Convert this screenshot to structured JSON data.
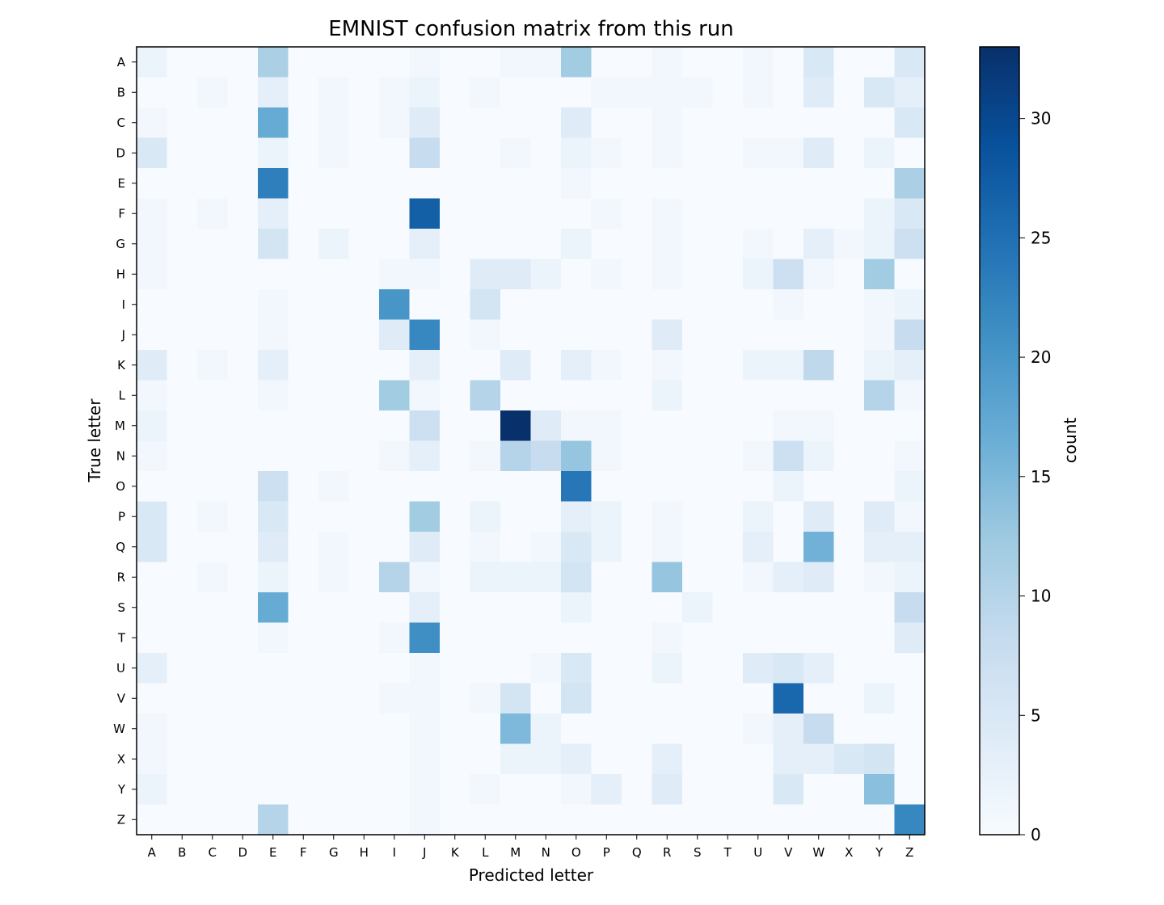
{
  "chart_data": {
    "type": "heatmap",
    "title": "EMNIST confusion matrix from this run",
    "xlabel": "Predicted letter",
    "ylabel": "True letter",
    "x_categories": [
      "A",
      "B",
      "C",
      "D",
      "E",
      "F",
      "G",
      "H",
      "I",
      "J",
      "K",
      "L",
      "M",
      "N",
      "O",
      "P",
      "Q",
      "R",
      "S",
      "T",
      "U",
      "V",
      "W",
      "X",
      "Y",
      "Z"
    ],
    "y_categories": [
      "A",
      "B",
      "C",
      "D",
      "E",
      "F",
      "G",
      "H",
      "I",
      "J",
      "K",
      "L",
      "M",
      "N",
      "O",
      "P",
      "Q",
      "R",
      "S",
      "T",
      "U",
      "V",
      "W",
      "X",
      "Y",
      "Z"
    ],
    "values": [
      [
        2,
        0,
        0,
        0,
        11,
        0,
        0,
        0,
        0,
        1,
        0,
        0,
        1,
        1,
        12,
        0,
        0,
        1,
        0,
        0,
        1,
        0,
        5,
        0,
        0,
        5
      ],
      [
        0,
        0,
        1,
        0,
        3,
        0,
        1,
        0,
        1,
        2,
        0,
        1,
        0,
        0,
        0,
        1,
        1,
        1,
        1,
        0,
        1,
        0,
        4,
        0,
        5,
        3
      ],
      [
        1,
        0,
        0,
        0,
        17,
        0,
        1,
        0,
        1,
        4,
        0,
        0,
        0,
        0,
        4,
        0,
        0,
        1,
        0,
        0,
        0,
        0,
        0,
        0,
        0,
        5
      ],
      [
        5,
        0,
        0,
        0,
        2,
        0,
        1,
        0,
        0,
        8,
        0,
        0,
        1,
        0,
        2,
        1,
        0,
        1,
        0,
        0,
        1,
        1,
        4,
        0,
        2,
        0
      ],
      [
        0,
        0,
        0,
        0,
        23,
        0,
        0,
        0,
        0,
        0,
        0,
        0,
        0,
        0,
        1,
        0,
        0,
        0,
        0,
        0,
        0,
        0,
        0,
        0,
        0,
        11
      ],
      [
        1,
        0,
        1,
        0,
        3,
        0,
        0,
        0,
        0,
        27,
        0,
        0,
        0,
        0,
        0,
        1,
        0,
        1,
        0,
        0,
        0,
        0,
        0,
        0,
        2,
        5
      ],
      [
        1,
        0,
        0,
        0,
        6,
        0,
        2,
        0,
        0,
        3,
        0,
        0,
        0,
        0,
        2,
        0,
        0,
        1,
        0,
        0,
        1,
        0,
        3,
        1,
        2,
        7
      ],
      [
        1,
        0,
        0,
        0,
        0,
        0,
        0,
        0,
        1,
        1,
        0,
        4,
        4,
        2,
        0,
        1,
        0,
        1,
        0,
        0,
        2,
        7,
        1,
        0,
        12,
        0
      ],
      [
        0,
        0,
        0,
        0,
        1,
        0,
        0,
        0,
        20,
        0,
        0,
        6,
        0,
        0,
        0,
        0,
        0,
        0,
        0,
        0,
        0,
        1,
        0,
        0,
        1,
        2
      ],
      [
        0,
        0,
        0,
        0,
        1,
        0,
        0,
        0,
        4,
        22,
        0,
        1,
        0,
        0,
        0,
        0,
        0,
        4,
        0,
        0,
        0,
        0,
        0,
        0,
        1,
        8
      ],
      [
        4,
        0,
        1,
        0,
        3,
        0,
        0,
        0,
        0,
        3,
        0,
        0,
        4,
        0,
        3,
        1,
        0,
        1,
        0,
        0,
        2,
        2,
        9,
        0,
        2,
        3
      ],
      [
        1,
        0,
        0,
        0,
        1,
        0,
        0,
        0,
        12,
        1,
        0,
        10,
        0,
        0,
        0,
        0,
        0,
        2,
        0,
        0,
        0,
        0,
        0,
        0,
        10,
        1
      ],
      [
        2,
        0,
        0,
        0,
        0,
        0,
        0,
        0,
        0,
        7,
        0,
        0,
        33,
        4,
        1,
        1,
        0,
        0,
        0,
        0,
        0,
        1,
        1,
        0,
        0,
        0
      ],
      [
        1,
        0,
        0,
        0,
        0,
        0,
        0,
        0,
        1,
        3,
        0,
        1,
        10,
        8,
        13,
        1,
        0,
        0,
        0,
        0,
        1,
        7,
        2,
        0,
        0,
        1
      ],
      [
        0,
        0,
        0,
        0,
        7,
        0,
        1,
        0,
        0,
        0,
        0,
        0,
        0,
        0,
        24,
        0,
        0,
        0,
        0,
        0,
        0,
        2,
        0,
        0,
        0,
        2
      ],
      [
        5,
        0,
        1,
        0,
        5,
        0,
        0,
        0,
        0,
        12,
        0,
        2,
        0,
        0,
        3,
        2,
        0,
        1,
        0,
        0,
        2,
        0,
        4,
        0,
        4,
        1
      ],
      [
        5,
        0,
        0,
        0,
        4,
        0,
        1,
        0,
        0,
        4,
        0,
        1,
        0,
        1,
        5,
        2,
        0,
        1,
        0,
        0,
        3,
        0,
        16,
        0,
        3,
        3
      ],
      [
        0,
        0,
        1,
        0,
        2,
        0,
        1,
        0,
        10,
        1,
        0,
        2,
        2,
        2,
        6,
        0,
        0,
        13,
        0,
        0,
        1,
        3,
        4,
        0,
        1,
        2
      ],
      [
        0,
        0,
        0,
        0,
        17,
        0,
        0,
        0,
        0,
        3,
        0,
        0,
        0,
        0,
        2,
        0,
        0,
        0,
        2,
        0,
        0,
        0,
        0,
        0,
        0,
        8
      ],
      [
        0,
        0,
        0,
        0,
        1,
        0,
        0,
        0,
        1,
        21,
        0,
        0,
        0,
        0,
        0,
        0,
        0,
        1,
        0,
        0,
        0,
        0,
        0,
        0,
        0,
        4
      ],
      [
        3,
        0,
        0,
        0,
        0,
        0,
        0,
        0,
        0,
        1,
        0,
        0,
        0,
        1,
        5,
        0,
        0,
        2,
        0,
        0,
        4,
        5,
        3,
        0,
        0,
        0
      ],
      [
        0,
        0,
        0,
        0,
        0,
        0,
        0,
        0,
        1,
        1,
        0,
        1,
        6,
        0,
        6,
        0,
        0,
        0,
        0,
        0,
        0,
        26,
        0,
        0,
        2,
        0
      ],
      [
        1,
        0,
        0,
        0,
        0,
        0,
        0,
        0,
        0,
        1,
        0,
        0,
        15,
        2,
        0,
        0,
        0,
        0,
        0,
        0,
        1,
        3,
        8,
        0,
        0,
        0
      ],
      [
        1,
        0,
        0,
        0,
        0,
        0,
        0,
        0,
        0,
        1,
        0,
        0,
        2,
        2,
        3,
        0,
        0,
        3,
        0,
        0,
        0,
        3,
        3,
        5,
        6,
        0
      ],
      [
        2,
        0,
        0,
        0,
        0,
        0,
        0,
        0,
        0,
        1,
        0,
        1,
        0,
        0,
        1,
        3,
        0,
        4,
        0,
        0,
        0,
        5,
        0,
        0,
        14,
        0
      ],
      [
        0,
        0,
        0,
        0,
        10,
        0,
        0,
        0,
        0,
        1,
        0,
        0,
        0,
        0,
        0,
        0,
        0,
        0,
        0,
        0,
        0,
        0,
        0,
        0,
        0,
        22
      ]
    ],
    "colorbar": {
      "label": "count",
      "min": 0,
      "max": 33,
      "ticks": [
        0,
        5,
        10,
        15,
        20,
        25,
        30
      ],
      "colormap": "Blues"
    },
    "colors": {
      "low": "#f7fbff",
      "high": "#08306b"
    },
    "grid": false
  }
}
